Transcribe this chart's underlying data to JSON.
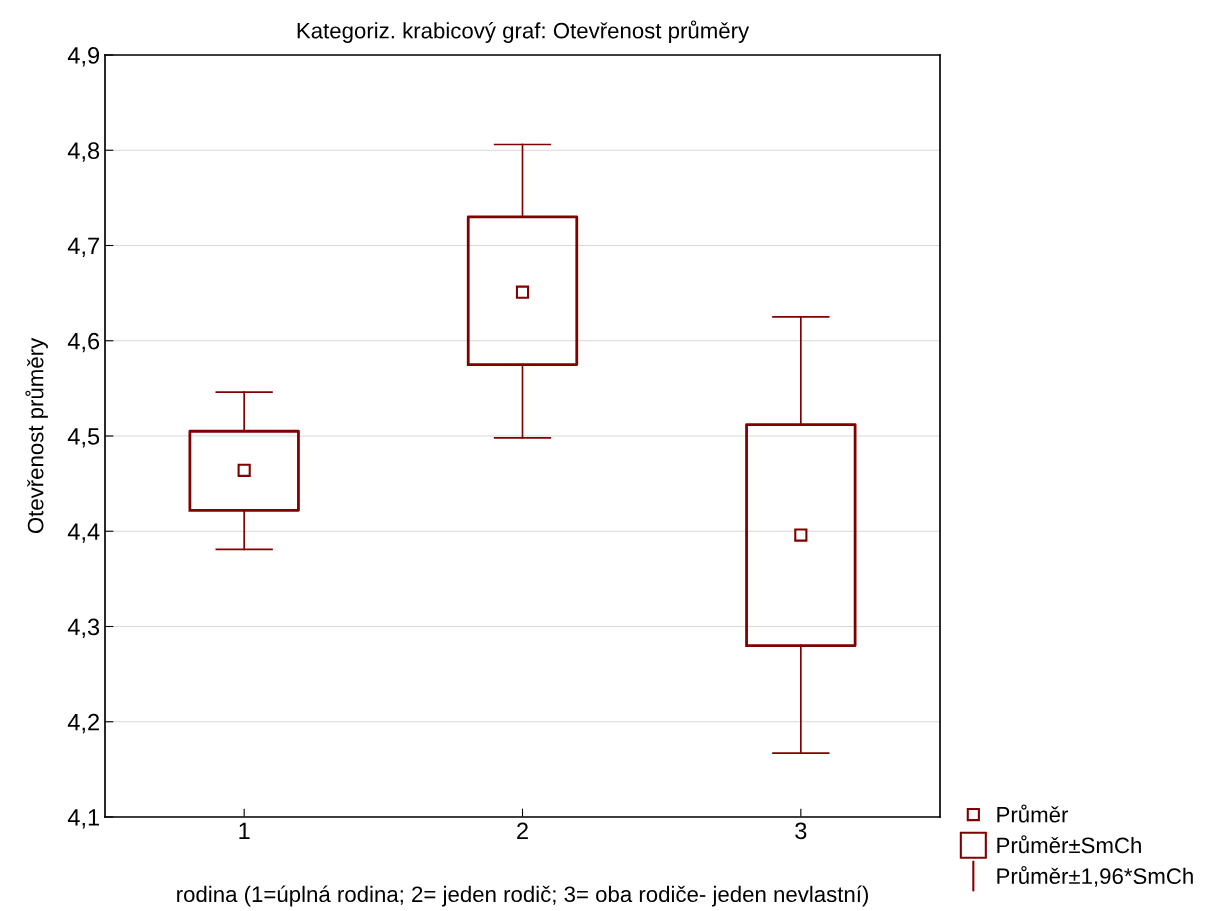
{
  "chart_data": {
    "type": "box",
    "title": "Kategoriz. krabicový graf: Otevřenost průměry",
    "xlabel": "rodina (1=úplná rodina; 2= jeden rodič; 3= oba rodiče- jeden nevlastní)",
    "ylabel": "Otevřenost průměry",
    "categories": [
      "1",
      "2",
      "3"
    ],
    "series": [
      {
        "color": "#800000",
        "boxes": [
          {
            "low": 4.381,
            "q1": 4.422,
            "q3": 4.505,
            "high": 4.546,
            "mean": 4.464
          },
          {
            "low": 4.498,
            "q1": 4.575,
            "q3": 4.73,
            "high": 4.806,
            "mean": 4.651
          },
          {
            "low": 4.167,
            "q1": 4.28,
            "q3": 4.512,
            "high": 4.625,
            "mean": 4.396
          }
        ]
      }
    ],
    "ylim": [
      4.1,
      4.9
    ],
    "yticks": [
      {
        "value": 4.1,
        "label": "4,1"
      },
      {
        "value": 4.2,
        "label": "4,2"
      },
      {
        "value": 4.3,
        "label": "4,3"
      },
      {
        "value": 4.4,
        "label": "4,4"
      },
      {
        "value": 4.5,
        "label": "4,5"
      },
      {
        "value": 4.6,
        "label": "4,6"
      },
      {
        "value": 4.7,
        "label": "4,7"
      },
      {
        "value": 4.8,
        "label": "4,8"
      },
      {
        "value": 4.9,
        "label": "4,9"
      }
    ],
    "grid": "y",
    "marker": "square",
    "annotations": [
      "Průměr",
      "Průměr±SmCh",
      "Průměr±1,96*SmCh"
    ]
  }
}
